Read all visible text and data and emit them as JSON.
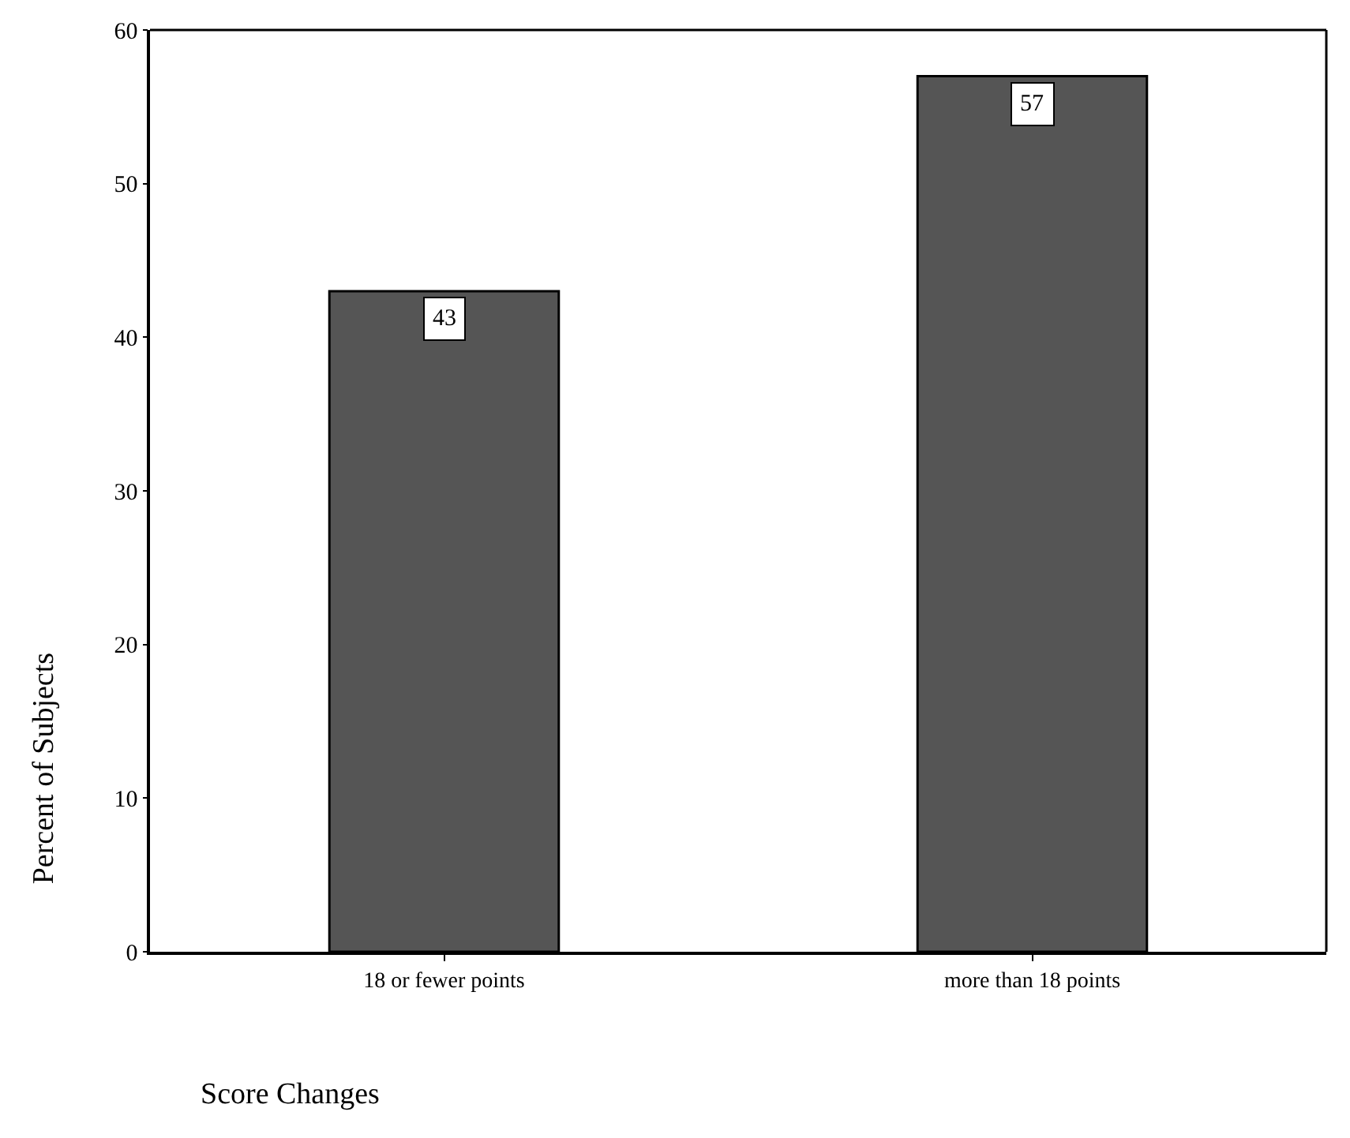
{
  "chart_data": {
    "type": "bar",
    "categories": [
      "18 or fewer points",
      "more than 18 points"
    ],
    "values": [
      43,
      57
    ],
    "color": "#555555",
    "xlabel": "Score Changes",
    "ylabel": "Percent of Subjects",
    "ylim": [
      0,
      60
    ],
    "yticks": [
      0,
      10,
      20,
      30,
      40,
      50,
      60
    ],
    "data_labels": true
  }
}
